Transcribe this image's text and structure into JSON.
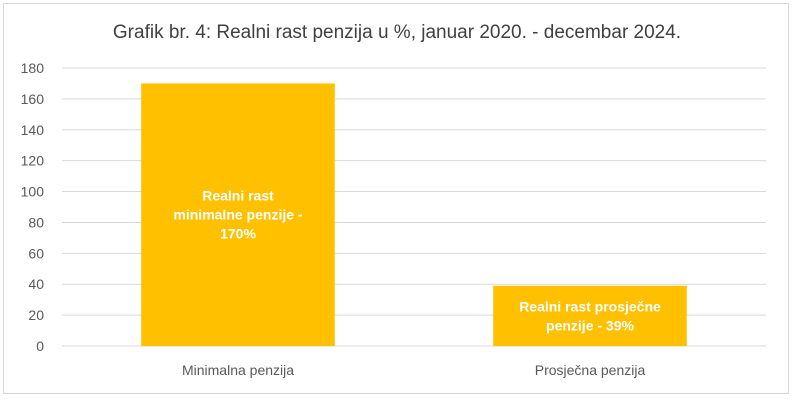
{
  "chart_data": {
    "type": "bar",
    "title": "Grafik br. 4: Realni rast penzija u %, januar 2020. - decembar 2024.",
    "categories": [
      "Minimalna penzija",
      "Prosječna penzija"
    ],
    "values": [
      170,
      39
    ],
    "data_labels": [
      [
        "Realni rast",
        "minimalne penzije -",
        "170%"
      ],
      [
        "Realni rast prosječne",
        "penzije - 39%"
      ]
    ],
    "ylim": [
      0,
      180
    ],
    "yticks": [
      0,
      20,
      40,
      60,
      80,
      100,
      120,
      140,
      160,
      180
    ],
    "grid": true,
    "legend": "none",
    "bar_color": "#ffc000",
    "grid_color": "#d9d9d9",
    "label_color": "#ffffff"
  }
}
